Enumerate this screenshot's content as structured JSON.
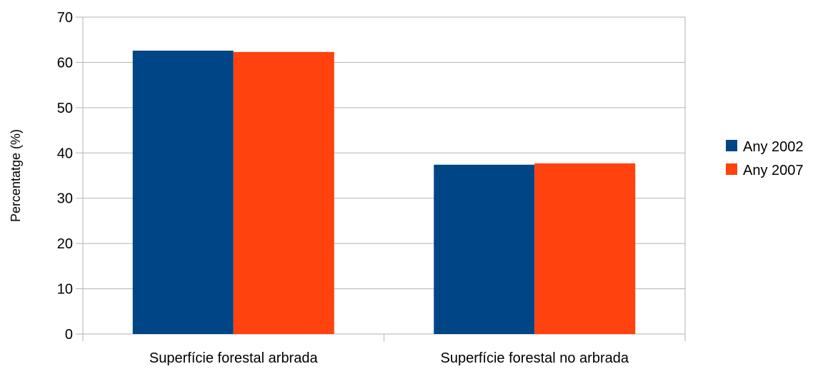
{
  "chart_data": {
    "type": "bar",
    "title": "",
    "xlabel": "",
    "ylabel": "Percentatge (%)",
    "ylim": [
      0,
      70
    ],
    "yticks": [
      0,
      10,
      20,
      30,
      40,
      50,
      60,
      70
    ],
    "grid": true,
    "legend_position": "right",
    "categories": [
      "Superfície forestal arbrada",
      "Superfície forestal no arbrada"
    ],
    "series": [
      {
        "name": "Any 2002",
        "color": "#004586",
        "values": [
          62.6,
          37.4
        ]
      },
      {
        "name": "Any 2007",
        "color": "#ff420e",
        "values": [
          62.3,
          37.7
        ]
      }
    ]
  }
}
